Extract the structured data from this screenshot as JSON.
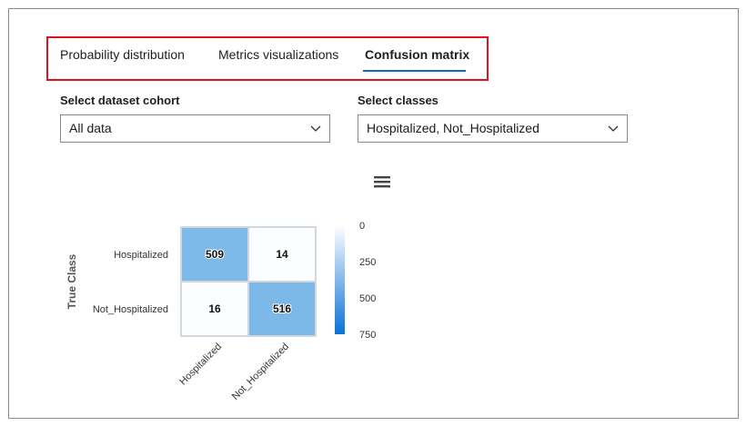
{
  "tabs": [
    {
      "label": "Probability distribution",
      "active": false
    },
    {
      "label": "Metrics visualizations",
      "active": false
    },
    {
      "label": "Confusion matrix",
      "active": true
    }
  ],
  "cohort": {
    "label": "Select dataset cohort",
    "value": "All data"
  },
  "classes": {
    "label": "Select classes",
    "value": "Hospitalized, Not_Hospitalized"
  },
  "menu_icon": "hamburger-menu-icon",
  "colors": {
    "accent": "#0f6cbd",
    "highlight_border": "#e0121c",
    "cell_high": "#4b9fe0",
    "cell_low": "#ffffff"
  },
  "chart_data": {
    "type": "heatmap",
    "ylabel": "True Class",
    "row_labels": [
      "Hospitalized",
      "Not_Hospitalized"
    ],
    "col_labels": [
      "Hospitalized",
      "Not_Hospitalized"
    ],
    "values": [
      [
        509,
        14
      ],
      [
        16,
        516
      ]
    ],
    "colorbar_ticks": [
      "0",
      "250",
      "500",
      "750"
    ],
    "range": [
      0,
      750
    ]
  }
}
